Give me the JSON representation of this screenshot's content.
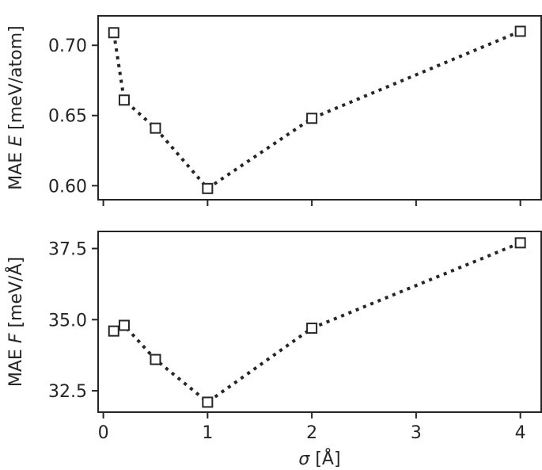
{
  "chart_data": [
    {
      "type": "line",
      "x": [
        0.1,
        0.2,
        0.5,
        1,
        2,
        4
      ],
      "series": [
        {
          "values": [
            0.709,
            0.661,
            0.641,
            0.598,
            0.648,
            0.71
          ]
        }
      ],
      "xlim": [
        -0.05,
        4.2
      ],
      "ylim": [
        0.59,
        0.721
      ],
      "xticks": [
        0,
        1,
        2,
        3,
        4
      ],
      "xtick_labels": [
        "",
        "",
        "",
        "",
        ""
      ],
      "yticks": [
        0.6,
        0.65,
        0.7
      ],
      "ytick_labels": [
        "0.60",
        "0.65",
        "0.70"
      ],
      "ylabel": "MAE E [meV/atom]",
      "ylabel_parts": {
        "prefix": "MAE ",
        "italic": "E",
        "suffix": " [meV/atom]"
      },
      "xlabel": "",
      "marker": "open-square",
      "linestyle": "dotted",
      "color": "#262626"
    },
    {
      "type": "line",
      "x": [
        0.1,
        0.2,
        0.5,
        1,
        2,
        4
      ],
      "series": [
        {
          "values": [
            34.6,
            34.8,
            33.6,
            32.1,
            34.7,
            37.7
          ]
        }
      ],
      "xlim": [
        -0.05,
        4.2
      ],
      "ylim": [
        31.75,
        38.1
      ],
      "xticks": [
        0,
        1,
        2,
        3,
        4
      ],
      "xtick_labels": [
        "0",
        "1",
        "2",
        "3",
        "4"
      ],
      "yticks": [
        32.5,
        35.0,
        37.5
      ],
      "ytick_labels": [
        "32.5",
        "35.0",
        "37.5"
      ],
      "ylabel": "MAE F [meV/Å]",
      "ylabel_parts": {
        "prefix": "MAE ",
        "italic": "F",
        "suffix": " [meV/Å]"
      },
      "xlabel": "σ [Å]",
      "xlabel_parts": {
        "italic": "σ",
        "suffix": " [Å]"
      },
      "marker": "open-square",
      "linestyle": "dotted",
      "color": "#262626"
    }
  ]
}
